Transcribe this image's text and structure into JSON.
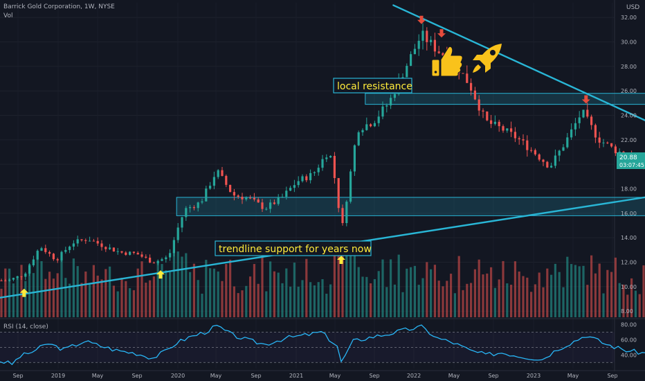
{
  "header": {
    "symbol_line": "Barrick Gold Corporation, 1W, NYSE",
    "volume_label": "Vol",
    "currency": "USD",
    "rsi_label": "RSI (14, close)"
  },
  "colors": {
    "background": "#131722",
    "up": "#26a69a",
    "down": "#ef5350",
    "trendline": "#29b6d6",
    "zone_fill": "rgba(41,182,214,0.18)",
    "zone_border": "#29b6d6",
    "annotation_text": "#ffeb3b",
    "marker_up": "#ffeb3b",
    "marker_down": "#e74c3c",
    "rsi_line": "#29b6f6",
    "axis_text": "#b2b5be",
    "price_tag": "#26a69a"
  },
  "icons": [
    "thumbs-up-icon",
    "rocket-icon"
  ],
  "chart_data": [
    {
      "type": "candlestick",
      "title": "Barrick Gold Corporation, 1W, NYSE",
      "y_unit": "USD",
      "ylim": [
        7.5,
        33.2
      ],
      "y_ticks": [
        8,
        10,
        12,
        14,
        16,
        18,
        20,
        22,
        24,
        26,
        28,
        30,
        32
      ],
      "y_tick_labels": [
        "8.00",
        "10.00",
        "12.00",
        "14.00",
        "16.00",
        "18.00",
        "20.00",
        "22.00",
        "24.00",
        "26.00",
        "28.00",
        "30.00",
        "32.00"
      ],
      "x_tick_labels": [
        "Sep",
        "2019",
        "May",
        "Sep",
        "2020",
        "May",
        "Sep",
        "2021",
        "May",
        "Sep",
        "2022",
        "May",
        "Sep",
        "2023",
        "May",
        "Sep"
      ],
      "last_price": "20.88",
      "countdown": "03:07:45",
      "price_path": [
        [
          "2018-08-13",
          10.5
        ],
        [
          "2018-09-10",
          11.0
        ],
        [
          "2018-10-08",
          13.3
        ],
        [
          "2018-11-05",
          12.2
        ],
        [
          "2018-12-03",
          13.6
        ],
        [
          "2018-12-31",
          13.9
        ],
        [
          "2019-01-28",
          13.3
        ],
        [
          "2019-02-25",
          12.8
        ],
        [
          "2019-03-25",
          12.7
        ],
        [
          "2019-04-22",
          12.0
        ],
        [
          "2019-05-20",
          12.4
        ],
        [
          "2019-06-03",
          14.5
        ],
        [
          "2019-06-17",
          16.3
        ],
        [
          "2019-07-15",
          16.9
        ],
        [
          "2019-08-12",
          19.5
        ],
        [
          "2019-09-09",
          17.5
        ],
        [
          "2019-10-07",
          17.2
        ],
        [
          "2019-11-04",
          16.4
        ],
        [
          "2019-12-02",
          17.2
        ],
        [
          "2019-12-30",
          18.6
        ],
        [
          "2020-01-27",
          19.2
        ],
        [
          "2020-02-24",
          21.2
        ],
        [
          "2020-03-09",
          17.8
        ],
        [
          "2020-03-16",
          14.3
        ],
        [
          "2020-03-30",
          18.6
        ],
        [
          "2020-04-13",
          22.9
        ],
        [
          "2020-05-11",
          23.5
        ],
        [
          "2020-06-08",
          25.1
        ],
        [
          "2020-07-06",
          27.9
        ],
        [
          "2020-08-03",
          30.6
        ],
        [
          "2020-08-31",
          29.3
        ],
        [
          "2020-09-28",
          28.4
        ],
        [
          "2020-10-26",
          26.5
        ],
        [
          "2020-11-23",
          23.5
        ],
        [
          "2020-12-21",
          22.9
        ],
        [
          "2021-01-18",
          22.1
        ],
        [
          "2021-02-15",
          21.0
        ],
        [
          "2021-03-15",
          19.8
        ],
        [
          "2021-04-12",
          21.9
        ],
        [
          "2021-05-10",
          24.3
        ],
        [
          "2021-06-07",
          22.1
        ],
        [
          "2021-07-05",
          21.2
        ],
        [
          "2021-08-02",
          20.6
        ],
        [
          "2021-08-30",
          19.8
        ],
        [
          "2021-09-27",
          18.2
        ],
        [
          "2021-10-11",
          18.8
        ],
        [
          "2021-10-25",
          19.6
        ],
        [
          "2021-11-08",
          20.88
        ]
      ],
      "annotations": [
        {
          "text": "local resistance",
          "kind": "label"
        },
        {
          "text": "trendline support for years now",
          "kind": "label"
        }
      ],
      "trendlines": [
        {
          "name": "support",
          "from": [
            "2018-07-30",
            9.1
          ],
          "to": [
            "2022-04-04",
            18.9
          ]
        },
        {
          "name": "resistance",
          "from": [
            "2020-06-15",
            33.0
          ],
          "to": [
            "2022-04-04",
            18.9
          ]
        }
      ],
      "zones": [
        {
          "name": "resistance zone",
          "x_from": "2020-04-27",
          "x_to": "2022-03-21",
          "y_from": 24.9,
          "y_to": 25.8
        },
        {
          "name": "support zone",
          "x_from": "2019-06-03",
          "x_to": "2022-03-07",
          "y_from": 15.8,
          "y_to": 17.3
        }
      ],
      "projection": [
        [
          "2021-11-08",
          20.9
        ],
        [
          "2021-11-29",
          22.6
        ],
        [
          "2021-12-20",
          21.3
        ],
        [
          "2022-01-24",
          22.0
        ],
        [
          "2022-03-14",
          26.0
        ]
      ],
      "markers": [
        {
          "kind": "up",
          "at": [
            "2018-09-10",
            9.5
          ]
        },
        {
          "kind": "up",
          "at": [
            "2019-05-06",
            11.0
          ]
        },
        {
          "kind": "up",
          "at": [
            "2020-03-16",
            12.2
          ]
        },
        {
          "kind": "up",
          "at": [
            "2021-09-27",
            16.8
          ]
        },
        {
          "kind": "down",
          "at": [
            "2020-08-03",
            31.8
          ]
        },
        {
          "kind": "down",
          "at": [
            "2020-09-07",
            30.7
          ]
        },
        {
          "kind": "down",
          "at": [
            "2021-05-17",
            25.3
          ]
        }
      ]
    },
    {
      "type": "line",
      "title": "RSI (14, close)",
      "ylim": [
        22,
        86
      ],
      "y_ticks": [
        40,
        60,
        80
      ],
      "y_tick_labels": [
        "40.00",
        "60.00",
        "80.00"
      ],
      "guide_levels": [
        30,
        50,
        70
      ],
      "last_value": 53,
      "x_dates": [
        "2018-07-30",
        "2018-08-20",
        "2018-09-03",
        "2018-09-24",
        "2018-10-22",
        "2018-11-19",
        "2018-12-24",
        "2019-01-21",
        "2019-02-18",
        "2019-03-25",
        "2019-04-22",
        "2019-05-13",
        "2019-06-03",
        "2019-06-24",
        "2019-07-22",
        "2019-08-12",
        "2019-09-09",
        "2019-10-07",
        "2019-11-04",
        "2019-12-09",
        "2020-01-13",
        "2020-02-10",
        "2020-03-09",
        "2020-03-16",
        "2020-04-06",
        "2020-05-04",
        "2020-06-08",
        "2020-07-06",
        "2020-08-03",
        "2020-08-31",
        "2020-09-28",
        "2020-10-26",
        "2020-11-23",
        "2020-12-21",
        "2021-01-25",
        "2021-03-01",
        "2021-03-29",
        "2021-04-26",
        "2021-05-17",
        "2021-06-21",
        "2021-07-26",
        "2021-08-30",
        "2021-09-27",
        "2021-10-25",
        "2021-11-08"
      ],
      "values": [
        32,
        28,
        38,
        44,
        55,
        47,
        58,
        52,
        46,
        42,
        36,
        44,
        56,
        63,
        70,
        78,
        66,
        59,
        54,
        62,
        66,
        70,
        52,
        30,
        58,
        63,
        68,
        73,
        77,
        62,
        56,
        46,
        40,
        43,
        38,
        34,
        48,
        58,
        66,
        54,
        46,
        42,
        38,
        46,
        53
      ]
    }
  ]
}
